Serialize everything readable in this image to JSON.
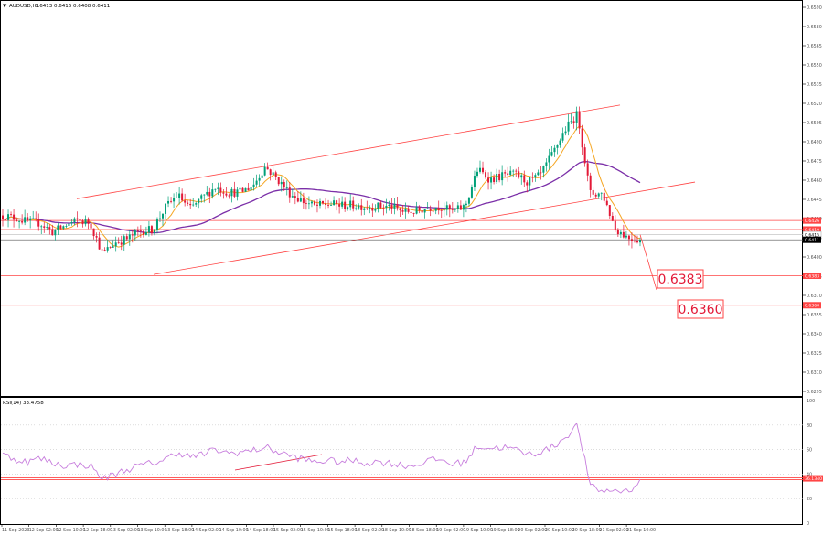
{
  "header": {
    "symbol": "AUDUSD,H1",
    "ohlc": "0.6413 0.6416 0.6408 0.6411"
  },
  "price_axis": {
    "ticks": [
      "0.6590",
      "0.6580",
      "0.6565",
      "0.6550",
      "0.6535",
      "0.6520",
      "0.6505",
      "0.6490",
      "0.6475",
      "0.6460",
      "0.6445",
      "0.6430",
      "0.6415",
      "0.6400",
      "0.6385",
      "0.6370",
      "0.6355",
      "0.6340",
      "0.6325",
      "0.6310",
      "0.6295"
    ]
  },
  "time_axis": {
    "labels": [
      "11 Sep 2023",
      "12 Sep 02:00",
      "12 Sep 10:00",
      "12 Sep 18:00",
      "13 Sep 02:00",
      "13 Sep 10:00",
      "13 Sep 18:00",
      "14 Sep 02:00",
      "14 Sep 10:00",
      "14 Sep 18:00",
      "15 Sep 02:00",
      "15 Sep 10:00",
      "15 Sep 18:00",
      "18 Sep 02:00",
      "18 Sep 10:00",
      "18 Sep 18:00",
      "19 Sep 02:00",
      "19 Sep 10:00",
      "19 Sep 18:00",
      "20 Sep 02:00",
      "20 Sep 10:00",
      "20 Sep 18:00",
      "21 Sep 02:00",
      "21 Sep 10:00"
    ]
  },
  "levels": [
    {
      "value": 0.6426,
      "label": "0.6426"
    },
    {
      "value": 0.6419,
      "label": "0.6419"
    },
    {
      "value": 0.6383,
      "label": "0.6383"
    },
    {
      "value": 0.636,
      "label": "0.6360"
    }
  ],
  "target_labels": {
    "t1": "0.6383",
    "t2": "0.6360"
  },
  "current_price_labels": {
    "a": "0.6415",
    "b": "0.6411"
  },
  "rsi": {
    "title": "RSI(14) 33.4758",
    "ticks": [
      "100",
      "80",
      "60",
      "40",
      "20",
      "0"
    ],
    "value_label": "36.1340",
    "level": 36.134
  },
  "colors": {
    "bull": "#00a078",
    "bear": "#e31937",
    "level": "#ff4545",
    "ma_fast": "#f5a623",
    "ma_slow": "#7b2fa8",
    "rsi": "#c77ddd",
    "axis_text": "#555555"
  },
  "chart_data": {
    "type": "candlestick",
    "timeframe": "H1",
    "y_axis_range": [
      0.629,
      0.6595
    ],
    "rsi_range": [
      0,
      100
    ],
    "close_path": [
      0.643,
      0.6428,
      0.6425,
      0.6424,
      0.6417,
      0.6422,
      0.6426,
      0.6424,
      0.64,
      0.6409,
      0.6412,
      0.6418,
      0.6419,
      0.6436,
      0.6446,
      0.6435,
      0.6444,
      0.6452,
      0.6448,
      0.6448,
      0.6453,
      0.6468,
      0.6458,
      0.6447,
      0.6441,
      0.6437,
      0.6439,
      0.6438,
      0.6438,
      0.6437,
      0.6437,
      0.6437,
      0.6433,
      0.6433,
      0.6436,
      0.6437,
      0.6433,
      0.6437,
      0.6466,
      0.6458,
      0.6461,
      0.6462,
      0.6456,
      0.6461,
      0.6478,
      0.6497,
      0.6509,
      0.6447,
      0.6447,
      0.642,
      0.6413,
      0.6411
    ],
    "rsi_path": [
      56,
      52,
      50,
      53,
      49,
      47,
      48,
      47,
      36,
      40,
      44,
      47,
      49,
      52,
      58,
      54,
      56,
      60,
      57,
      58,
      59,
      62,
      58,
      55,
      52,
      50,
      51,
      50,
      51,
      49,
      50,
      49,
      47,
      47,
      51,
      52,
      48,
      50,
      63,
      61,
      62,
      60,
      56,
      58,
      62,
      70,
      80,
      30,
      26,
      27,
      26,
      34
    ]
  }
}
